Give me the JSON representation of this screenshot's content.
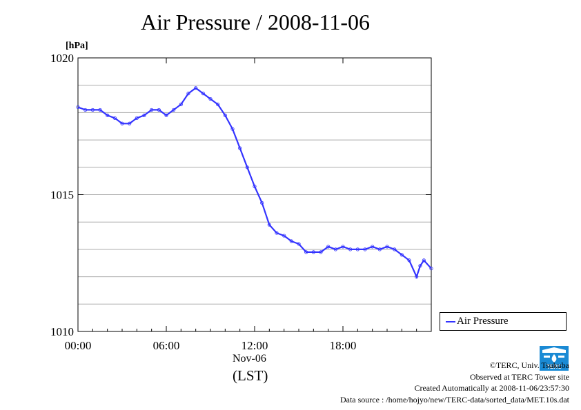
{
  "title": "Air Pressure / 2008-11-06",
  "colors": {
    "series": "#3333ff",
    "grid": "#aaaaaa",
    "logo": "#1a8ad4"
  },
  "chart_data": {
    "type": "line",
    "title": "Air Pressure / 2008-11-06",
    "ylabel": "[hPa]",
    "xlabel": "Nov-06",
    "xlabel_zone": "(LST)",
    "ylim": [
      1010,
      1020
    ],
    "xlim": [
      0,
      24
    ],
    "y_ticks": [
      1010,
      1015,
      1020
    ],
    "y_tick_labels": [
      "1010",
      "1015",
      "1020"
    ],
    "y_minor_grid": [
      1011,
      1012,
      1013,
      1014,
      1016,
      1017,
      1018,
      1019
    ],
    "x_ticks": [
      0,
      6,
      12,
      18
    ],
    "x_tick_labels": [
      "00:00",
      "06:00",
      "12:00",
      "18:00"
    ],
    "grid": true,
    "legend_position": "bottom-right-outside",
    "series": [
      {
        "name": "Air Pressure",
        "x": [
          0,
          0.5,
          1,
          1.5,
          2,
          2.5,
          3,
          3.5,
          4,
          4.5,
          5,
          5.5,
          6,
          6.5,
          7,
          7.5,
          8,
          8.5,
          9,
          9.5,
          10,
          10.5,
          11,
          11.5,
          12,
          12.5,
          13,
          13.5,
          14,
          14.5,
          15,
          15.5,
          16,
          16.5,
          17,
          17.5,
          18,
          18.5,
          19,
          19.5,
          20,
          20.5,
          21,
          21.5,
          22,
          22.5,
          23,
          23.25,
          23.5,
          24
        ],
        "values": [
          1018.2,
          1018.1,
          1018.1,
          1018.1,
          1017.9,
          1017.8,
          1017.6,
          1017.6,
          1017.8,
          1017.9,
          1018.1,
          1018.1,
          1017.9,
          1018.1,
          1018.3,
          1018.7,
          1018.9,
          1018.7,
          1018.5,
          1018.3,
          1017.9,
          1017.4,
          1016.7,
          1016.0,
          1015.3,
          1014.7,
          1013.9,
          1013.6,
          1013.5,
          1013.3,
          1013.2,
          1012.9,
          1012.9,
          1012.9,
          1013.1,
          1013.0,
          1013.1,
          1013.0,
          1013.0,
          1013.0,
          1013.1,
          1013.0,
          1013.1,
          1013.0,
          1012.8,
          1012.6,
          1012.0,
          1012.4,
          1012.6,
          1012.3
        ]
      }
    ]
  },
  "legend": {
    "label": "Air Pressure"
  },
  "credits": {
    "line1": "©TERC, Univ. Tsukuba",
    "line2": "Observed at TERC Tower site",
    "line3": "Created Automatically at 2008-11-06/23:57:30",
    "line4": "Data source : /home/hojyo/new/TERC-data/sorted_data/MET.10s.dat"
  },
  "logo": {
    "icon": "terc-logo-icon",
    "text": "TERC"
  }
}
